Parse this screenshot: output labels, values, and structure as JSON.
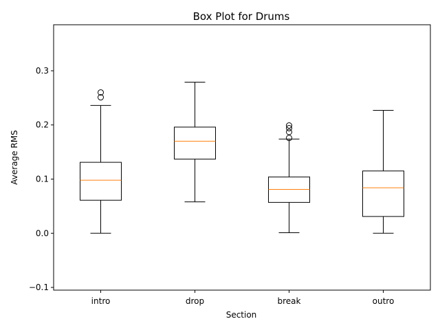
{
  "chart_data": {
    "type": "box",
    "title": "Box Plot for Drums",
    "xlabel": "Section",
    "ylabel": "Average RMS",
    "ylim": [
      -0.105,
      0.385
    ],
    "yticks": [
      -0.1,
      0.0,
      0.1,
      0.2,
      0.3
    ],
    "ytick_labels": [
      "−0.1",
      "0.0",
      "0.1",
      "0.2",
      "0.3"
    ],
    "categories": [
      "intro",
      "drop",
      "break",
      "outro"
    ],
    "boxes": [
      {
        "category": "intro",
        "whisker_low": 0.0,
        "q1": 0.061,
        "median": 0.098,
        "q3": 0.131,
        "whisker_high": 0.236,
        "outliers": [
          0.251,
          0.26
        ]
      },
      {
        "category": "drop",
        "whisker_low": 0.058,
        "q1": 0.137,
        "median": 0.17,
        "q3": 0.196,
        "whisker_high": 0.279,
        "outliers": []
      },
      {
        "category": "break",
        "whisker_low": 0.001,
        "q1": 0.057,
        "median": 0.081,
        "q3": 0.104,
        "whisker_high": 0.174,
        "outliers": [
          0.176,
          0.187,
          0.194,
          0.199
        ]
      },
      {
        "category": "outro",
        "whisker_low": 0.0,
        "q1": 0.031,
        "median": 0.084,
        "q3": 0.115,
        "whisker_high": 0.227,
        "outliers": []
      }
    ],
    "grid": false,
    "colors": {
      "box": "#000000",
      "median": "#ff7f0e",
      "outlier": "#000000"
    }
  }
}
